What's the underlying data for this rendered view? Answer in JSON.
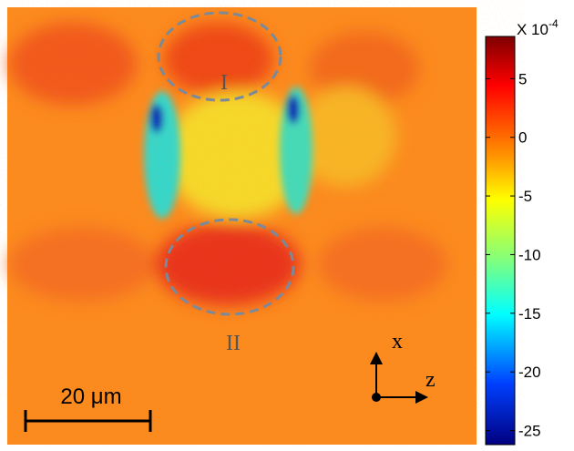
{
  "colorbar": {
    "label": "X 10",
    "exponent": "-4",
    "lim": [
      -26.2,
      8.6
    ],
    "ticks": [
      5,
      0,
      -5,
      -10,
      -15,
      -20,
      -25
    ]
  },
  "regions": [
    "I",
    "II"
  ],
  "scale_bar": "20 μm",
  "axes": {
    "x": "x",
    "z": "z"
  }
}
